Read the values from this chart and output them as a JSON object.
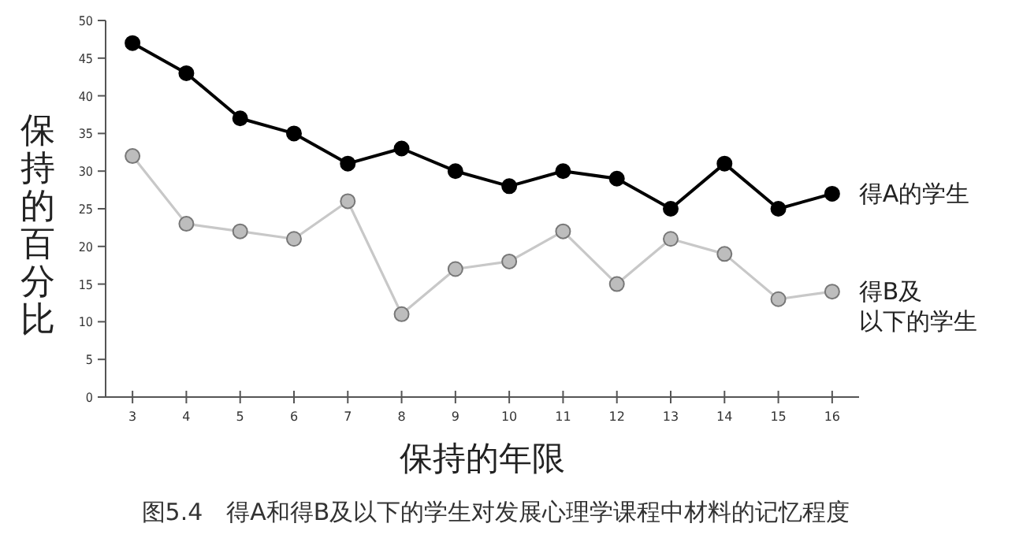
{
  "chart_data": {
    "type": "line",
    "xlabel": "保持的年限",
    "ylabel": "保持的百分比",
    "annotations": [
      "图5.4　得A和得B及以下的学生对发展心理学课程中材料的记忆程度"
    ],
    "x": [
      3,
      4,
      5,
      6,
      7,
      8,
      9,
      10,
      11,
      12,
      13,
      14,
      15,
      16
    ],
    "series": [
      {
        "name": "得A的学生",
        "color": "#000000",
        "values": [
          47,
          43,
          37,
          35,
          31,
          33,
          30,
          28,
          30,
          29,
          25,
          31,
          25,
          27
        ]
      },
      {
        "name": "得B及以下的学生",
        "color": "#c8c8c8",
        "values": [
          32,
          23,
          22,
          21,
          26,
          11,
          17,
          18,
          22,
          15,
          21,
          19,
          13,
          14
        ]
      }
    ],
    "xlim": [
      2.5,
      16.5
    ],
    "ylim": [
      0,
      50
    ],
    "xticks": [
      3,
      4,
      5,
      6,
      7,
      8,
      9,
      10,
      11,
      12,
      13,
      14,
      15,
      16
    ],
    "yticks": [
      0,
      5,
      10,
      15,
      20,
      25,
      30,
      35,
      40,
      45,
      50
    ],
    "grid": false,
    "legend": false,
    "marker": "circle",
    "line_style": "solid"
  }
}
